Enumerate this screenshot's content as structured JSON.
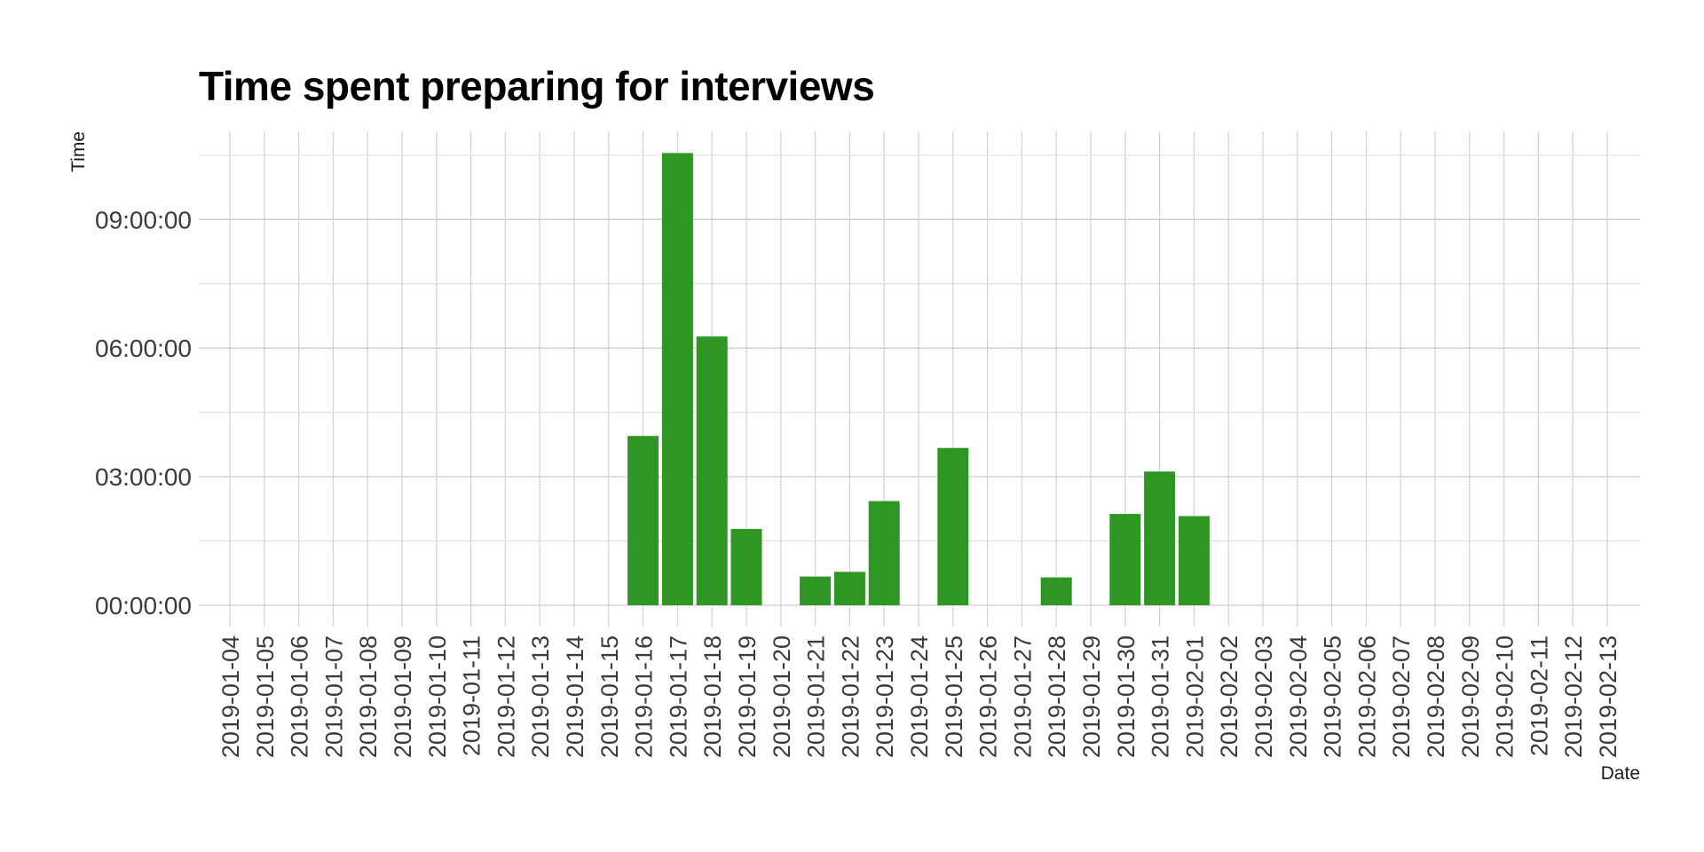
{
  "chart_data": {
    "type": "bar",
    "title": "Time spent preparing for interviews",
    "xlabel": "Date",
    "ylabel": "Time",
    "bar_color": "#2e9623",
    "grid": true,
    "y_unit": "hours",
    "ylim": [
      -0.5,
      11
    ],
    "y_ticks": [
      {
        "value": 0,
        "label": "00:00:00"
      },
      {
        "value": 3,
        "label": "03:00:00"
      },
      {
        "value": 6,
        "label": "06:00:00"
      },
      {
        "value": 9,
        "label": "09:00:00"
      }
    ],
    "categories": [
      "2019-01-04",
      "2019-01-05",
      "2019-01-06",
      "2019-01-07",
      "2019-01-08",
      "2019-01-09",
      "2019-01-10",
      "2019-01-11",
      "2019-01-12",
      "2019-01-13",
      "2019-01-14",
      "2019-01-15",
      "2019-01-16",
      "2019-01-17",
      "2019-01-18",
      "2019-01-19",
      "2019-01-20",
      "2019-01-21",
      "2019-01-22",
      "2019-01-23",
      "2019-01-24",
      "2019-01-25",
      "2019-01-26",
      "2019-01-27",
      "2019-01-28",
      "2019-01-29",
      "2019-01-30",
      "2019-01-31",
      "2019-02-01",
      "2019-02-02",
      "2019-02-03",
      "2019-02-04",
      "2019-02-05",
      "2019-02-06",
      "2019-02-07",
      "2019-02-08",
      "2019-02-09",
      "2019-02-10",
      "2019-02-11",
      "2019-02-12",
      "2019-02-13"
    ],
    "values": [
      0,
      0,
      0,
      0,
      0,
      0,
      0,
      0,
      0,
      0,
      0,
      0,
      3.95,
      10.55,
      6.27,
      1.78,
      0,
      0.67,
      0.78,
      2.43,
      0,
      3.67,
      0,
      0,
      0.65,
      0,
      2.13,
      3.12,
      2.08,
      0,
      0,
      0,
      0,
      0,
      0,
      0,
      0,
      0,
      0,
      0,
      0
    ]
  }
}
